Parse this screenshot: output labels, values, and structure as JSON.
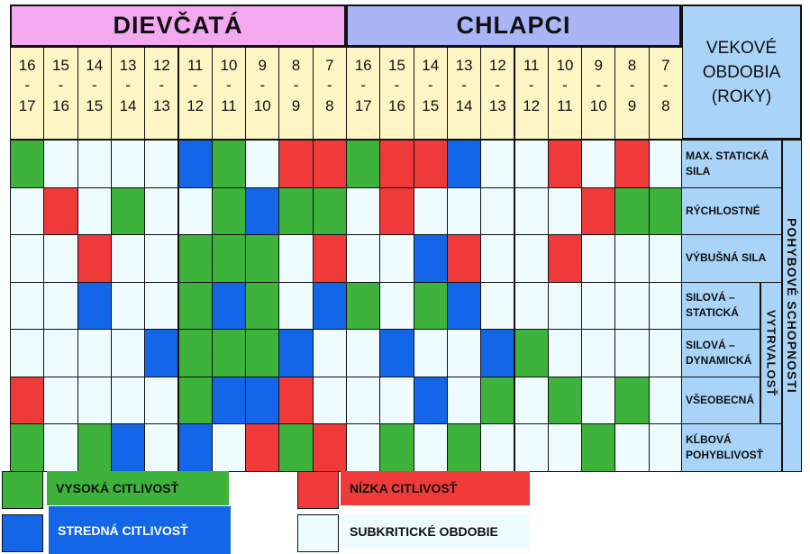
{
  "colors": {
    "high": "#3db33b",
    "medium": "#1466e8",
    "low": "#f03a3a",
    "subcritical": "#eefbff",
    "girls_header": "#f2a9ef",
    "boys_header": "#a9b5f7",
    "age_bg": "#fdf5c4",
    "label_bg": "#a9d3f7"
  },
  "headers": {
    "girls": "DIEVČATÁ",
    "boys": "CHLAPCI",
    "age_period": "VEKOVÉ OBDOBIA (ROKY)"
  },
  "age_ranges": [
    {
      "from": "16",
      "to": "17"
    },
    {
      "from": "15",
      "to": "16"
    },
    {
      "from": "14",
      "to": "15"
    },
    {
      "from": "13",
      "to": "14"
    },
    {
      "from": "12",
      "to": "13"
    },
    {
      "from": "11",
      "to": "12"
    },
    {
      "from": "10",
      "to": "11"
    },
    {
      "from": "9",
      "to": "10"
    },
    {
      "from": "8",
      "to": "9"
    },
    {
      "from": "7",
      "to": "8"
    }
  ],
  "dash": "-",
  "abilities": [
    {
      "label": "MAX. STATICKÁ SILA",
      "girls": [
        "H",
        "S",
        "S",
        "S",
        "S",
        "M",
        "H",
        "S",
        "L",
        "L"
      ],
      "boys": [
        "H",
        "L",
        "L",
        "M",
        "S",
        "S",
        "L",
        "S",
        "L",
        "S"
      ]
    },
    {
      "label": "RÝCHLOSTNÉ",
      "girls": [
        "S",
        "L",
        "S",
        "H",
        "S",
        "S",
        "H",
        "M",
        "H",
        "H"
      ],
      "boys": [
        "S",
        "L",
        "S",
        "S",
        "S",
        "S",
        "S",
        "L",
        "H",
        "H"
      ]
    },
    {
      "label": "VÝBUŠNÁ SILA",
      "girls": [
        "S",
        "S",
        "L",
        "S",
        "S",
        "H",
        "H",
        "H",
        "S",
        "L"
      ],
      "boys": [
        "S",
        "S",
        "M",
        "L",
        "S",
        "S",
        "L",
        "S",
        "S",
        "S"
      ]
    },
    {
      "label": "SILOVÁ – STATICKÁ",
      "girls": [
        "S",
        "S",
        "M",
        "S",
        "S",
        "H",
        "M",
        "H",
        "S",
        "M"
      ],
      "boys": [
        "H",
        "S",
        "H",
        "M",
        "S",
        "S",
        "S",
        "S",
        "S",
        "S"
      ]
    },
    {
      "label": "SILOVÁ – DYNAMICKÁ",
      "girls": [
        "S",
        "S",
        "S",
        "S",
        "M",
        "H",
        "H",
        "H",
        "M",
        "S"
      ],
      "boys": [
        "S",
        "M",
        "S",
        "S",
        "M",
        "H",
        "S",
        "S",
        "S",
        "S"
      ]
    },
    {
      "label": "VŠEOBECNÁ",
      "girls": [
        "L",
        "S",
        "S",
        "S",
        "S",
        "H",
        "M",
        "M",
        "L",
        "S"
      ],
      "boys": [
        "S",
        "S",
        "M",
        "S",
        "H",
        "S",
        "H",
        "S",
        "H",
        "S"
      ]
    },
    {
      "label": "KĹBOVÁ POHYBLIVOSŤ",
      "girls": [
        "H",
        "S",
        "H",
        "M",
        "S",
        "M",
        "S",
        "L",
        "H",
        "L"
      ],
      "boys": [
        "S",
        "H",
        "S",
        "H",
        "S",
        "S",
        "S",
        "H",
        "S",
        "S"
      ]
    }
  ],
  "group_labels": {
    "movement_abilities": "POHYBOVÉ SCHOPNOSTI",
    "endurance": "VYTRVALOSŤ"
  },
  "legend": [
    {
      "code": "H",
      "label": "VYSOKÁ CITLIVOSŤ"
    },
    {
      "code": "L",
      "label": "NÍZKA CITLIVOSŤ"
    },
    {
      "code": "M",
      "label": "STREDNÁ CITLIVOSŤ"
    },
    {
      "code": "S",
      "label": "SUBKRITICKÉ OBDOBIE"
    }
  ]
}
